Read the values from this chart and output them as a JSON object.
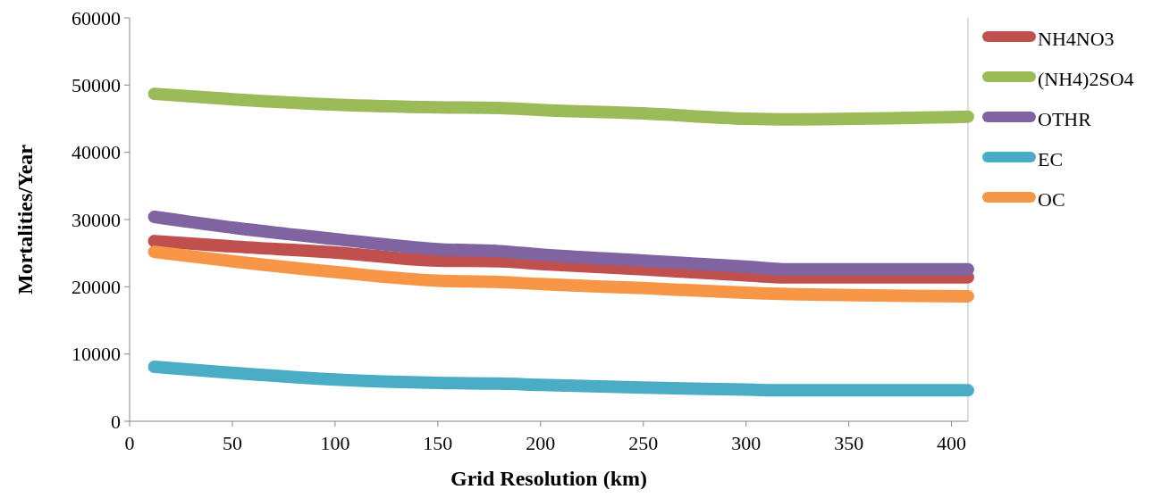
{
  "chart_data": {
    "type": "line",
    "xlabel": "Grid Resolution (km)",
    "ylabel": "Mortalities/Year",
    "x": [
      12,
      50,
      100,
      150,
      180,
      200,
      250,
      300,
      320,
      408
    ],
    "series": [
      {
        "name": "NH4NO3",
        "color": "#c0504d",
        "values": [
          26800,
          26000,
          25100,
          23900,
          23800,
          23400,
          22600,
          21700,
          21400,
          21400
        ]
      },
      {
        "name": "(NH4)2SO4",
        "color": "#9bbb59",
        "values": [
          48700,
          47900,
          47100,
          46700,
          46600,
          46300,
          45800,
          45000,
          44900,
          45300
        ]
      },
      {
        "name": "OTHR",
        "color": "#8064a2",
        "values": [
          30400,
          28800,
          27100,
          25600,
          25300,
          24800,
          23900,
          23000,
          22600,
          22600
        ]
      },
      {
        "name": "EC",
        "color": "#4bacc6",
        "values": [
          8100,
          7200,
          6200,
          5700,
          5600,
          5400,
          5000,
          4700,
          4600,
          4600
        ]
      },
      {
        "name": "OC",
        "color": "#f79646",
        "values": [
          25200,
          23800,
          22200,
          20900,
          20700,
          20400,
          19800,
          19100,
          18900,
          18600
        ]
      }
    ],
    "xlim": [
      0,
      408
    ],
    "xticks": [
      0,
      50,
      100,
      150,
      200,
      250,
      300,
      350,
      400
    ],
    "ylim": [
      0,
      60000
    ],
    "yticks": [
      0,
      10000,
      20000,
      30000,
      40000,
      50000,
      60000
    ],
    "legend": "right",
    "line_style": "solid"
  }
}
